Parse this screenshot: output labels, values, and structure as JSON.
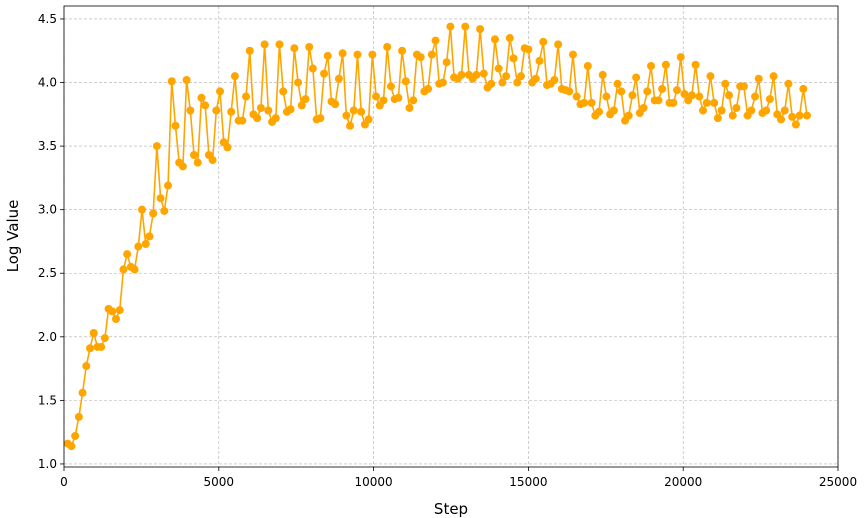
{
  "chart_data": {
    "type": "line",
    "xlabel": "Step",
    "ylabel": "Log Value",
    "color": "#ffa500",
    "grid": true,
    "xlim": [
      0,
      25000
    ],
    "ylim": [
      0.976,
      4.602
    ],
    "xticks": [
      0,
      5000,
      10000,
      15000,
      20000,
      25000
    ],
    "yticks": [
      {
        "value": 1,
        "label": "1.0"
      },
      1.5,
      {
        "value": 2,
        "label": "2.0"
      },
      2.5,
      {
        "value": 3,
        "label": "3.0"
      },
      3.5,
      {
        "value": 4,
        "label": "4.0"
      },
      4.5
    ],
    "x": [
      120,
      240,
      360,
      480,
      600,
      720,
      840,
      960,
      1080,
      1200,
      1320,
      1440,
      1560,
      1680,
      1800,
      1920,
      2040,
      2160,
      2280,
      2400,
      2520,
      2640,
      2760,
      2880,
      3000,
      3120,
      3240,
      3360,
      3480,
      3600,
      3720,
      3840,
      3960,
      4080,
      4200,
      4320,
      4440,
      4560,
      4680,
      4800,
      4920,
      5040,
      5160,
      5280,
      5400,
      5520,
      5640,
      5760,
      5880,
      6000,
      6120,
      6240,
      6360,
      6480,
      6600,
      6720,
      6840,
      6960,
      7080,
      7200,
      7320,
      7440,
      7560,
      7680,
      7800,
      7920,
      8040,
      8160,
      8280,
      8400,
      8520,
      8640,
      8760,
      8880,
      9000,
      9120,
      9240,
      9360,
      9480,
      9600,
      9720,
      9840,
      9960,
      10080,
      10200,
      10320,
      10440,
      10560,
      10680,
      10800,
      10920,
      11040,
      11160,
      11280,
      11400,
      11520,
      11640,
      11760,
      11880,
      12000,
      12120,
      12240,
      12360,
      12480,
      12600,
      12720,
      12840,
      12960,
      13080,
      13200,
      13320,
      13440,
      13560,
      13680,
      13800,
      13920,
      14040,
      14160,
      14280,
      14400,
      14520,
      14640,
      14760,
      14880,
      15000,
      15120,
      15240,
      15360,
      15480,
      15600,
      15720,
      15840,
      15960,
      16080,
      16200,
      16320,
      16440,
      16560,
      16680,
      16800,
      16920,
      17040,
      17160,
      17280,
      17400,
      17520,
      17640,
      17760,
      17880,
      18000,
      18120,
      18240,
      18360,
      18480,
      18600,
      18720,
      18840,
      18960,
      19080,
      19200,
      19320,
      19440,
      19560,
      19680,
      19800,
      19920,
      20040,
      20160,
      20280,
      20400,
      20520,
      20640,
      20760,
      20880,
      21000,
      21120,
      21240,
      21360,
      21480,
      21600,
      21720,
      21840,
      21960,
      22080,
      22200,
      22320,
      22440,
      22560,
      22680,
      22800,
      22920,
      23040,
      23160,
      23280,
      23400,
      23520,
      23640,
      23760,
      23880,
      24000
    ],
    "values": [
      1.16,
      1.14,
      1.22,
      1.37,
      1.56,
      1.77,
      1.91,
      2.03,
      1.92,
      1.92,
      1.99,
      2.22,
      2.2,
      2.14,
      2.21,
      2.53,
      2.65,
      2.55,
      2.53,
      2.71,
      3.0,
      2.73,
      2.79,
      2.97,
      3.5,
      3.09,
      2.99,
      3.19,
      4.01,
      3.66,
      3.37,
      3.34,
      4.02,
      3.78,
      3.43,
      3.37,
      3.88,
      3.82,
      3.43,
      3.39,
      3.78,
      3.93,
      3.53,
      3.49,
      3.77,
      4.05,
      3.7,
      3.7,
      3.89,
      4.25,
      3.75,
      3.72,
      3.8,
      4.3,
      3.78,
      3.69,
      3.72,
      4.3,
      3.93,
      3.77,
      3.79,
      4.27,
      4.0,
      3.82,
      3.87,
      4.28,
      4.11,
      3.71,
      3.72,
      4.07,
      4.21,
      3.85,
      3.83,
      4.03,
      4.23,
      3.74,
      3.66,
      3.78,
      4.22,
      3.77,
      3.67,
      3.71,
      4.22,
      3.89,
      3.82,
      3.86,
      4.28,
      3.97,
      3.87,
      3.88,
      4.25,
      4.01,
      3.8,
      3.86,
      4.22,
      4.2,
      3.93,
      3.95,
      4.22,
      4.33,
      3.99,
      4.0,
      4.16,
      4.44,
      4.04,
      4.03,
      4.06,
      4.44,
      4.06,
      4.03,
      4.06,
      4.42,
      4.07,
      3.96,
      3.99,
      4.34,
      4.11,
      4.0,
      4.05,
      4.35,
      4.19,
      4.0,
      4.05,
      4.27,
      4.26,
      4.0,
      4.03,
      4.17,
      4.32,
      3.98,
      3.99,
      4.02,
      4.3,
      3.95,
      3.94,
      3.93,
      4.22,
      3.89,
      3.83,
      3.84,
      4.13,
      3.84,
      3.74,
      3.77,
      4.06,
      3.89,
      3.75,
      3.78,
      3.99,
      3.93,
      3.7,
      3.74,
      3.9,
      4.04,
      3.76,
      3.8,
      3.93,
      4.13,
      3.86,
      3.86,
      3.95,
      4.14,
      3.84,
      3.84,
      3.94,
      4.2,
      3.91,
      3.86,
      3.9,
      4.14,
      3.89,
      3.78,
      3.84,
      4.05,
      3.84,
      3.72,
      3.78,
      3.99,
      3.9,
      3.74,
      3.8,
      3.97,
      3.97,
      3.74,
      3.78,
      3.89,
      4.03,
      3.76,
      3.78,
      3.87,
      4.05,
      3.75,
      3.71,
      3.78,
      3.99,
      3.73,
      3.67,
      3.74,
      3.95,
      3.74
    ]
  }
}
